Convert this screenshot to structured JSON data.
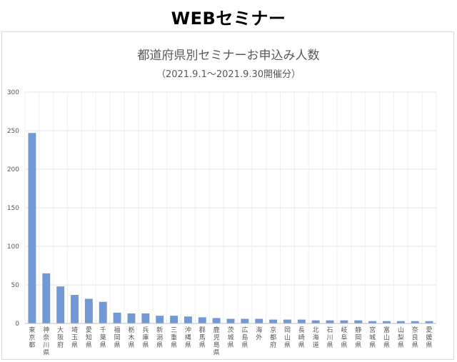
{
  "header": {
    "title": "WEBセミナー"
  },
  "chart_data": {
    "type": "bar",
    "title": "都道府県別セミナーお申込み人数",
    "subtitle": "（2021.9.1～2021.9.30開催分）",
    "categories": [
      "東京都",
      "神奈川県",
      "大阪府",
      "埼玉県",
      "愛知県",
      "千葉県",
      "福岡県",
      "栃木県",
      "兵庫県",
      "新潟県",
      "三重県",
      "沖縄県",
      "群馬県",
      "鹿児島県",
      "茨城県",
      "広島県",
      "海外",
      "京都府",
      "岡山県",
      "長崎県",
      "北海道",
      "石川県",
      "岐阜県",
      "静岡県",
      "宮城県",
      "富山県",
      "山梨県",
      "奈良県",
      "愛媛県"
    ],
    "values": [
      247,
      65,
      48,
      37,
      32,
      28,
      14,
      13,
      13,
      10,
      10,
      9,
      8,
      7,
      6,
      6,
      6,
      5,
      5,
      5,
      4,
      4,
      4,
      4,
      3,
      3,
      3,
      3,
      3
    ],
    "yticks": [
      0,
      50,
      100,
      150,
      200,
      250,
      300
    ],
    "ylim": [
      0,
      300
    ],
    "grid": true,
    "colors": {
      "bar": "#7398d6",
      "grid": "#e6e6e6",
      "text": "#595959"
    }
  }
}
